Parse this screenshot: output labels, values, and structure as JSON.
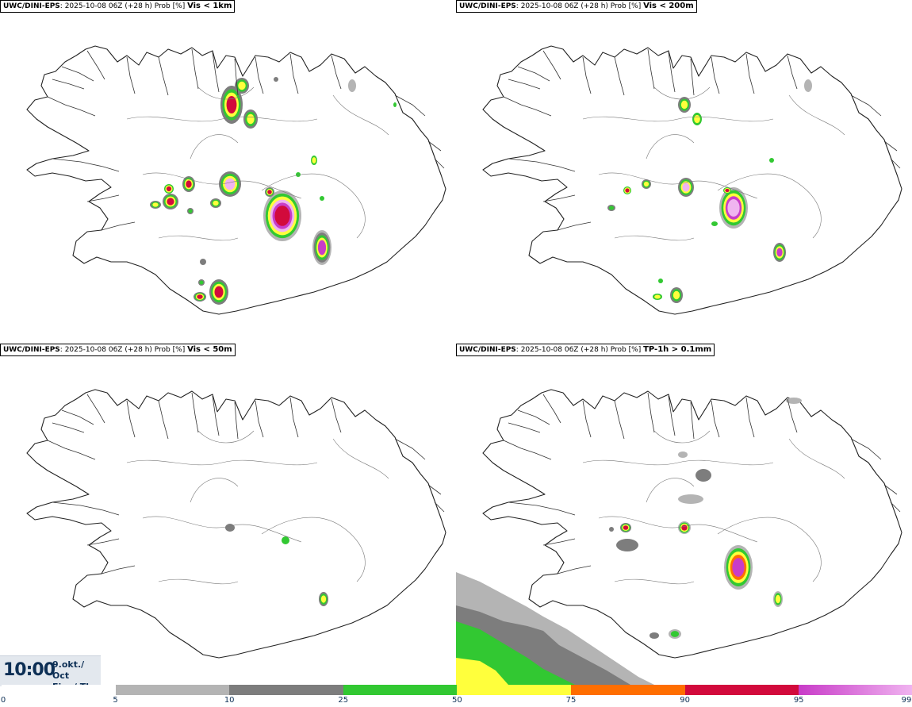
{
  "panels": [
    {
      "source": "UWC/DINI-EPS",
      "run": ": 2025-10-08 06Z (+28 h) Prob [%] ",
      "variable": "Vis < 1km"
    },
    {
      "source": "UWC/DINI-EPS",
      "run": ": 2025-10-08 06Z (+28 h) Prob [%] ",
      "variable": "Vis < 200m"
    },
    {
      "source": "UWC/DINI-EPS",
      "run": ": 2025-10-08 06Z (+28 h) Prob [%] ",
      "variable": "Vis < 50m"
    },
    {
      "source": "UWC/DINI-EPS",
      "run": ": 2025-10-08 06Z (+28 h) Prob [%] ",
      "variable": "TP-1h > 0.1mm"
    }
  ],
  "time": {
    "clock": "10:00",
    "date_line1": "9.okt./ Oct",
    "date_line2": "Fim./ Thu"
  },
  "legend": {
    "ticks": [
      "0",
      "5",
      "10",
      "25",
      "50",
      "75",
      "90",
      "95",
      "99"
    ],
    "colors": [
      "#ffffff",
      "#b4b4b4",
      "#7d7d7d",
      "#32c832",
      "#ffff3c",
      "#ff6e00",
      "#d20a3c",
      "#c83cc8",
      "#f0b4f0"
    ]
  }
}
